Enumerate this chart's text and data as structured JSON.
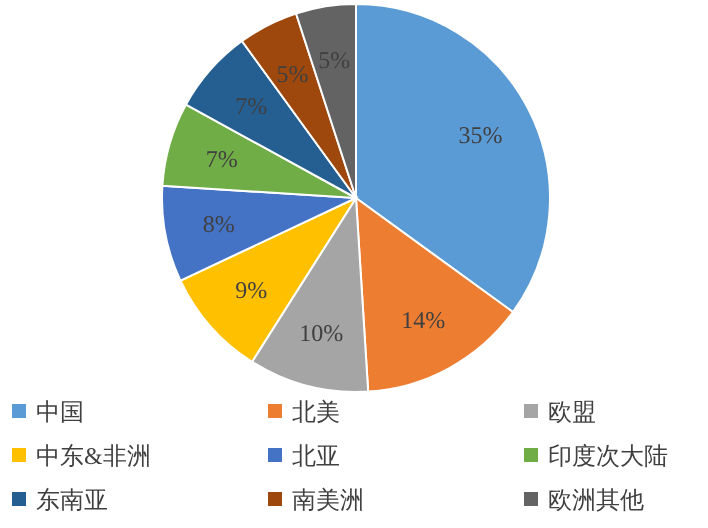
{
  "chart_data": {
    "type": "pie",
    "categories": [
      "中国",
      "北美",
      "欧盟",
      "中东&非洲",
      "北亚",
      "印度次大陆",
      "东南亚",
      "南美洲",
      "欧洲其他"
    ],
    "values": [
      35,
      14,
      10,
      9,
      8,
      7,
      7,
      5,
      5
    ],
    "colors": [
      "#5b9bd5",
      "#ed7d31",
      "#a5a5a5",
      "#ffc000",
      "#4472c4",
      "#70ad47",
      "#255e91",
      "#9e480e",
      "#636363"
    ],
    "value_labels": [
      "35%",
      "14%",
      "10%",
      "9%",
      "8%",
      "7%",
      "7%",
      "5%",
      "5%"
    ],
    "legend": "bottom"
  }
}
